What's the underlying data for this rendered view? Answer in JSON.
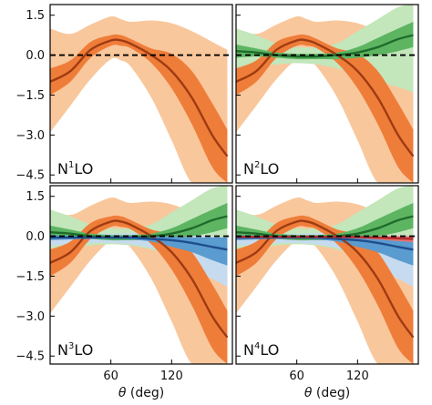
{
  "chart_data": [
    {
      "type": "area",
      "panel": "N1LO",
      "label": {
        "prefix": "N",
        "sup": "1",
        "suffix": "LO"
      },
      "xlabel": "",
      "show_y_ticks": true,
      "xlim": [
        0,
        180
      ],
      "ylim": [
        -4.8,
        1.9
      ],
      "yticks": [
        1.5,
        0.0,
        -1.5,
        -3.0,
        -4.5
      ],
      "ytick_labels": [
        "1.5",
        "0.0",
        "−1.5",
        "−3.0",
        "−4.5"
      ],
      "xticks": [
        60,
        120
      ],
      "xtick_labels": [
        "",
        ""
      ],
      "grid": false,
      "reference_line": {
        "y": 0,
        "style": "dashed",
        "color": "#000000"
      },
      "series": [
        {
          "color_center": "#9e3b12",
          "color_inner": "#ef7d3a",
          "color_outer": "#f9c79c",
          "x": [
            0,
            20,
            40,
            60,
            70,
            80,
            100,
            120,
            140,
            160,
            175
          ],
          "center": [
            -1.0,
            -0.6,
            0.2,
            0.55,
            0.55,
            0.42,
            0.0,
            -0.6,
            -1.6,
            -3.0,
            -3.8
          ],
          "inner_lo": [
            -1.5,
            -1.0,
            -0.1,
            0.35,
            0.35,
            0.25,
            -0.3,
            -1.25,
            -2.6,
            -4.2,
            -4.8
          ],
          "inner_hi": [
            -0.5,
            -0.2,
            0.5,
            0.75,
            0.75,
            0.6,
            0.25,
            0.05,
            -0.6,
            -1.8,
            -2.8
          ],
          "outer_lo": [
            -2.9,
            -1.9,
            -0.9,
            -0.15,
            -0.2,
            -0.45,
            -1.6,
            -3.2,
            -4.8,
            -4.8,
            -4.8
          ],
          "outer_hi": [
            1.0,
            0.8,
            1.15,
            1.45,
            1.35,
            1.25,
            1.3,
            1.2,
            0.9,
            0.5,
            0.2
          ]
        }
      ]
    },
    {
      "type": "area",
      "panel": "N2LO",
      "label": {
        "prefix": "N",
        "sup": "2",
        "suffix": "LO"
      },
      "xlabel": "",
      "show_y_ticks": false,
      "xlim": [
        0,
        180
      ],
      "ylim": [
        -4.8,
        1.9
      ],
      "yticks": [
        1.5,
        0.0,
        -1.5,
        -3.0,
        -4.5
      ],
      "xticks": [
        60,
        120
      ],
      "xtick_labels": [
        "",
        ""
      ],
      "grid": false,
      "reference_line": {
        "y": 0,
        "style": "dashed",
        "color": "#000000"
      },
      "series": [
        {
          "color_center": "#9e3b12",
          "color_inner": "#ef7d3a",
          "color_outer": "#f9c79c",
          "x": [
            0,
            20,
            40,
            60,
            70,
            80,
            100,
            120,
            140,
            160,
            175
          ],
          "center": [
            -1.0,
            -0.6,
            0.2,
            0.55,
            0.55,
            0.42,
            0.0,
            -0.6,
            -1.6,
            -3.0,
            -3.8
          ],
          "inner_lo": [
            -1.5,
            -1.0,
            -0.1,
            0.35,
            0.35,
            0.25,
            -0.3,
            -1.25,
            -2.6,
            -4.2,
            -4.8
          ],
          "inner_hi": [
            -0.5,
            -0.2,
            0.5,
            0.75,
            0.75,
            0.6,
            0.25,
            0.05,
            -0.6,
            -1.8,
            -2.8
          ],
          "outer_lo": [
            -2.9,
            -1.9,
            -0.9,
            -0.15,
            -0.2,
            -0.45,
            -1.6,
            -3.2,
            -4.8,
            -4.8,
            -4.8
          ],
          "outer_hi": [
            1.0,
            0.8,
            1.15,
            1.45,
            1.35,
            1.25,
            1.3,
            1.2,
            0.9,
            0.5,
            0.2
          ]
        },
        {
          "color_center": "#1f6b2a",
          "color_inner": "#5db562",
          "color_outer": "#c3e6bb",
          "x": [
            0,
            20,
            40,
            60,
            80,
            100,
            120,
            140,
            160,
            175
          ],
          "center": [
            0.15,
            0.1,
            0.0,
            -0.05,
            -0.05,
            0.0,
            0.1,
            0.3,
            0.6,
            0.75
          ],
          "inner_lo": [
            -0.1,
            -0.05,
            -0.1,
            -0.15,
            -0.15,
            -0.15,
            -0.1,
            0.0,
            0.15,
            0.3
          ],
          "inner_hi": [
            0.4,
            0.25,
            0.1,
            0.05,
            0.05,
            0.1,
            0.3,
            0.65,
            1.0,
            1.25
          ],
          "outer_lo": [
            -0.65,
            -0.45,
            -0.35,
            -0.3,
            -0.35,
            -0.5,
            -0.75,
            -1.0,
            -1.2,
            -1.4
          ],
          "outer_hi": [
            1.0,
            0.75,
            0.45,
            0.3,
            0.3,
            0.45,
            0.9,
            1.35,
            1.8,
            1.9
          ]
        }
      ]
    },
    {
      "type": "area",
      "panel": "N3LO",
      "label": {
        "prefix": "N",
        "sup": "3",
        "suffix": "LO"
      },
      "xlabel": "θ (deg)",
      "show_y_ticks": true,
      "xlim": [
        0,
        180
      ],
      "ylim": [
        -4.8,
        1.9
      ],
      "yticks": [
        1.5,
        0.0,
        -1.5,
        -3.0,
        -4.5
      ],
      "ytick_labels": [
        "1.5",
        "0.0",
        "−1.5",
        "−3.0",
        "−4.5"
      ],
      "xticks": [
        60,
        120
      ],
      "xtick_labels": [
        "60",
        "120"
      ],
      "grid": false,
      "reference_line": {
        "y": 0,
        "style": "dashed",
        "color": "#000000"
      },
      "series": [
        {
          "color_center": "#9e3b12",
          "color_inner": "#ef7d3a",
          "color_outer": "#f9c79c",
          "x": [
            0,
            20,
            40,
            60,
            70,
            80,
            100,
            120,
            140,
            160,
            175
          ],
          "center": [
            -1.0,
            -0.6,
            0.2,
            0.55,
            0.55,
            0.42,
            0.0,
            -0.6,
            -1.6,
            -3.0,
            -3.8
          ],
          "inner_lo": [
            -1.5,
            -1.0,
            -0.1,
            0.35,
            0.35,
            0.25,
            -0.3,
            -1.25,
            -2.6,
            -4.2,
            -4.8
          ],
          "inner_hi": [
            -0.5,
            -0.2,
            0.5,
            0.75,
            0.75,
            0.6,
            0.25,
            0.05,
            -0.6,
            -1.8,
            -2.8
          ],
          "outer_lo": [
            -2.9,
            -1.9,
            -0.9,
            -0.15,
            -0.2,
            -0.45,
            -1.6,
            -3.2,
            -4.8,
            -4.8,
            -4.8
          ],
          "outer_hi": [
            1.0,
            0.8,
            1.15,
            1.45,
            1.35,
            1.25,
            1.3,
            1.2,
            0.9,
            0.5,
            0.2
          ]
        },
        {
          "color_center": "#1f6b2a",
          "color_inner": "#5db562",
          "color_outer": "#c3e6bb",
          "x": [
            0,
            20,
            40,
            60,
            80,
            100,
            120,
            140,
            160,
            175
          ],
          "center": [
            0.15,
            0.1,
            0.0,
            -0.05,
            -0.05,
            0.0,
            0.1,
            0.3,
            0.6,
            0.75
          ],
          "inner_lo": [
            -0.1,
            -0.05,
            -0.1,
            -0.15,
            -0.15,
            -0.15,
            -0.1,
            0.0,
            0.15,
            0.3
          ],
          "inner_hi": [
            0.4,
            0.25,
            0.1,
            0.05,
            0.05,
            0.1,
            0.3,
            0.65,
            1.0,
            1.25
          ],
          "outer_lo": [
            -0.65,
            -0.45,
            -0.35,
            -0.3,
            -0.35,
            -0.5,
            -0.75,
            -1.0,
            -1.2,
            -1.4
          ],
          "outer_hi": [
            1.0,
            0.75,
            0.45,
            0.3,
            0.3,
            0.45,
            0.9,
            1.35,
            1.8,
            1.9
          ]
        },
        {
          "color_center": "#1f4e8c",
          "color_inner": "#5a9bd0",
          "color_outer": "#c6dbef",
          "x": [
            0,
            20,
            40,
            60,
            80,
            100,
            120,
            140,
            160,
            175
          ],
          "center": [
            -0.05,
            -0.05,
            -0.05,
            -0.05,
            -0.05,
            -0.1,
            -0.15,
            -0.25,
            -0.4,
            -0.5
          ],
          "inner_lo": [
            -0.15,
            -0.12,
            -0.1,
            -0.1,
            -0.12,
            -0.2,
            -0.4,
            -0.6,
            -0.9,
            -1.1
          ],
          "inner_hi": [
            0.05,
            0.02,
            0.0,
            0.0,
            0.02,
            0.0,
            -0.02,
            -0.05,
            -0.05,
            -0.05
          ],
          "outer_lo": [
            -0.35,
            -0.3,
            -0.25,
            -0.25,
            -0.3,
            -0.45,
            -0.75,
            -1.2,
            -1.6,
            -1.9
          ],
          "outer_hi": [
            0.2,
            0.15,
            0.1,
            0.1,
            0.12,
            0.15,
            0.1,
            0.05,
            0.0,
            -0.05
          ]
        }
      ]
    },
    {
      "type": "area",
      "panel": "N4LO",
      "label": {
        "prefix": "N",
        "sup": "4",
        "suffix": "LO"
      },
      "xlabel": "θ (deg)",
      "show_y_ticks": false,
      "xlim": [
        0,
        180
      ],
      "ylim": [
        -4.8,
        1.9
      ],
      "yticks": [
        1.5,
        0.0,
        -1.5,
        -3.0,
        -4.5
      ],
      "xticks": [
        60,
        120
      ],
      "xtick_labels": [
        "60",
        "120"
      ],
      "grid": false,
      "reference_line": {
        "y": 0,
        "style": "dashed",
        "color": "#000000"
      },
      "series": [
        {
          "color_center": "#9e3b12",
          "color_inner": "#ef7d3a",
          "color_outer": "#f9c79c",
          "x": [
            0,
            20,
            40,
            60,
            70,
            80,
            100,
            120,
            140,
            160,
            175
          ],
          "center": [
            -1.0,
            -0.6,
            0.2,
            0.55,
            0.55,
            0.42,
            0.0,
            -0.6,
            -1.6,
            -3.0,
            -3.8
          ],
          "inner_lo": [
            -1.5,
            -1.0,
            -0.1,
            0.35,
            0.35,
            0.25,
            -0.3,
            -1.25,
            -2.6,
            -4.2,
            -4.8
          ],
          "inner_hi": [
            -0.5,
            -0.2,
            0.5,
            0.75,
            0.75,
            0.6,
            0.25,
            0.05,
            -0.6,
            -1.8,
            -2.8
          ],
          "outer_lo": [
            -2.9,
            -1.9,
            -0.9,
            -0.15,
            -0.2,
            -0.45,
            -1.6,
            -3.2,
            -4.8,
            -4.8,
            -4.8
          ],
          "outer_hi": [
            1.0,
            0.8,
            1.15,
            1.45,
            1.35,
            1.25,
            1.3,
            1.2,
            0.9,
            0.5,
            0.2
          ]
        },
        {
          "color_center": "#1f6b2a",
          "color_inner": "#5db562",
          "color_outer": "#c3e6bb",
          "x": [
            0,
            20,
            40,
            60,
            80,
            100,
            120,
            140,
            160,
            175
          ],
          "center": [
            0.15,
            0.1,
            0.0,
            -0.05,
            -0.05,
            0.0,
            0.1,
            0.3,
            0.6,
            0.75
          ],
          "inner_lo": [
            -0.1,
            -0.05,
            -0.1,
            -0.15,
            -0.15,
            -0.15,
            -0.1,
            0.0,
            0.15,
            0.3
          ],
          "inner_hi": [
            0.4,
            0.25,
            0.1,
            0.05,
            0.05,
            0.1,
            0.3,
            0.65,
            1.0,
            1.25
          ],
          "outer_lo": [
            -0.65,
            -0.45,
            -0.35,
            -0.3,
            -0.35,
            -0.5,
            -0.75,
            -1.0,
            -1.2,
            -1.4
          ],
          "outer_hi": [
            1.0,
            0.75,
            0.45,
            0.3,
            0.3,
            0.45,
            0.9,
            1.35,
            1.8,
            1.9
          ]
        },
        {
          "color_center": "#1f4e8c",
          "color_inner": "#5a9bd0",
          "color_outer": "#c6dbef",
          "x": [
            0,
            20,
            40,
            60,
            80,
            100,
            120,
            140,
            160,
            175
          ],
          "center": [
            -0.05,
            -0.05,
            -0.05,
            -0.05,
            -0.05,
            -0.1,
            -0.15,
            -0.25,
            -0.4,
            -0.5
          ],
          "inner_lo": [
            -0.15,
            -0.12,
            -0.1,
            -0.1,
            -0.12,
            -0.2,
            -0.4,
            -0.6,
            -0.9,
            -1.1
          ],
          "inner_hi": [
            0.05,
            0.02,
            0.0,
            0.0,
            0.02,
            0.0,
            -0.02,
            -0.05,
            -0.05,
            -0.05
          ],
          "outer_lo": [
            -0.35,
            -0.3,
            -0.25,
            -0.25,
            -0.3,
            -0.45,
            -0.75,
            -1.2,
            -1.6,
            -1.9
          ],
          "outer_hi": [
            0.2,
            0.15,
            0.1,
            0.1,
            0.12,
            0.15,
            0.1,
            0.05,
            0.0,
            -0.05
          ]
        },
        {
          "color_center": "#b42d2d",
          "color_inner": "#e57373",
          "color_outer": "#f6c6c6",
          "x": [
            0,
            20,
            40,
            60,
            80,
            100,
            120,
            140,
            160,
            175
          ],
          "center": [
            -0.02,
            -0.02,
            -0.02,
            -0.02,
            -0.02,
            -0.02,
            -0.03,
            -0.05,
            -0.08,
            -0.1
          ],
          "inner_lo": [
            -0.05,
            -0.05,
            -0.05,
            -0.05,
            -0.05,
            -0.06,
            -0.08,
            -0.12,
            -0.18,
            -0.22
          ],
          "inner_hi": [
            0.01,
            0.01,
            0.01,
            0.01,
            0.01,
            0.01,
            0.0,
            0.0,
            0.0,
            0.0
          ],
          "outer_lo": [
            -0.1,
            -0.1,
            -0.1,
            -0.1,
            -0.1,
            -0.12,
            -0.16,
            -0.25,
            -0.35,
            -0.45
          ],
          "outer_hi": [
            0.05,
            0.05,
            0.05,
            0.05,
            0.05,
            0.05,
            0.04,
            0.03,
            0.03,
            0.02
          ]
        }
      ]
    }
  ]
}
